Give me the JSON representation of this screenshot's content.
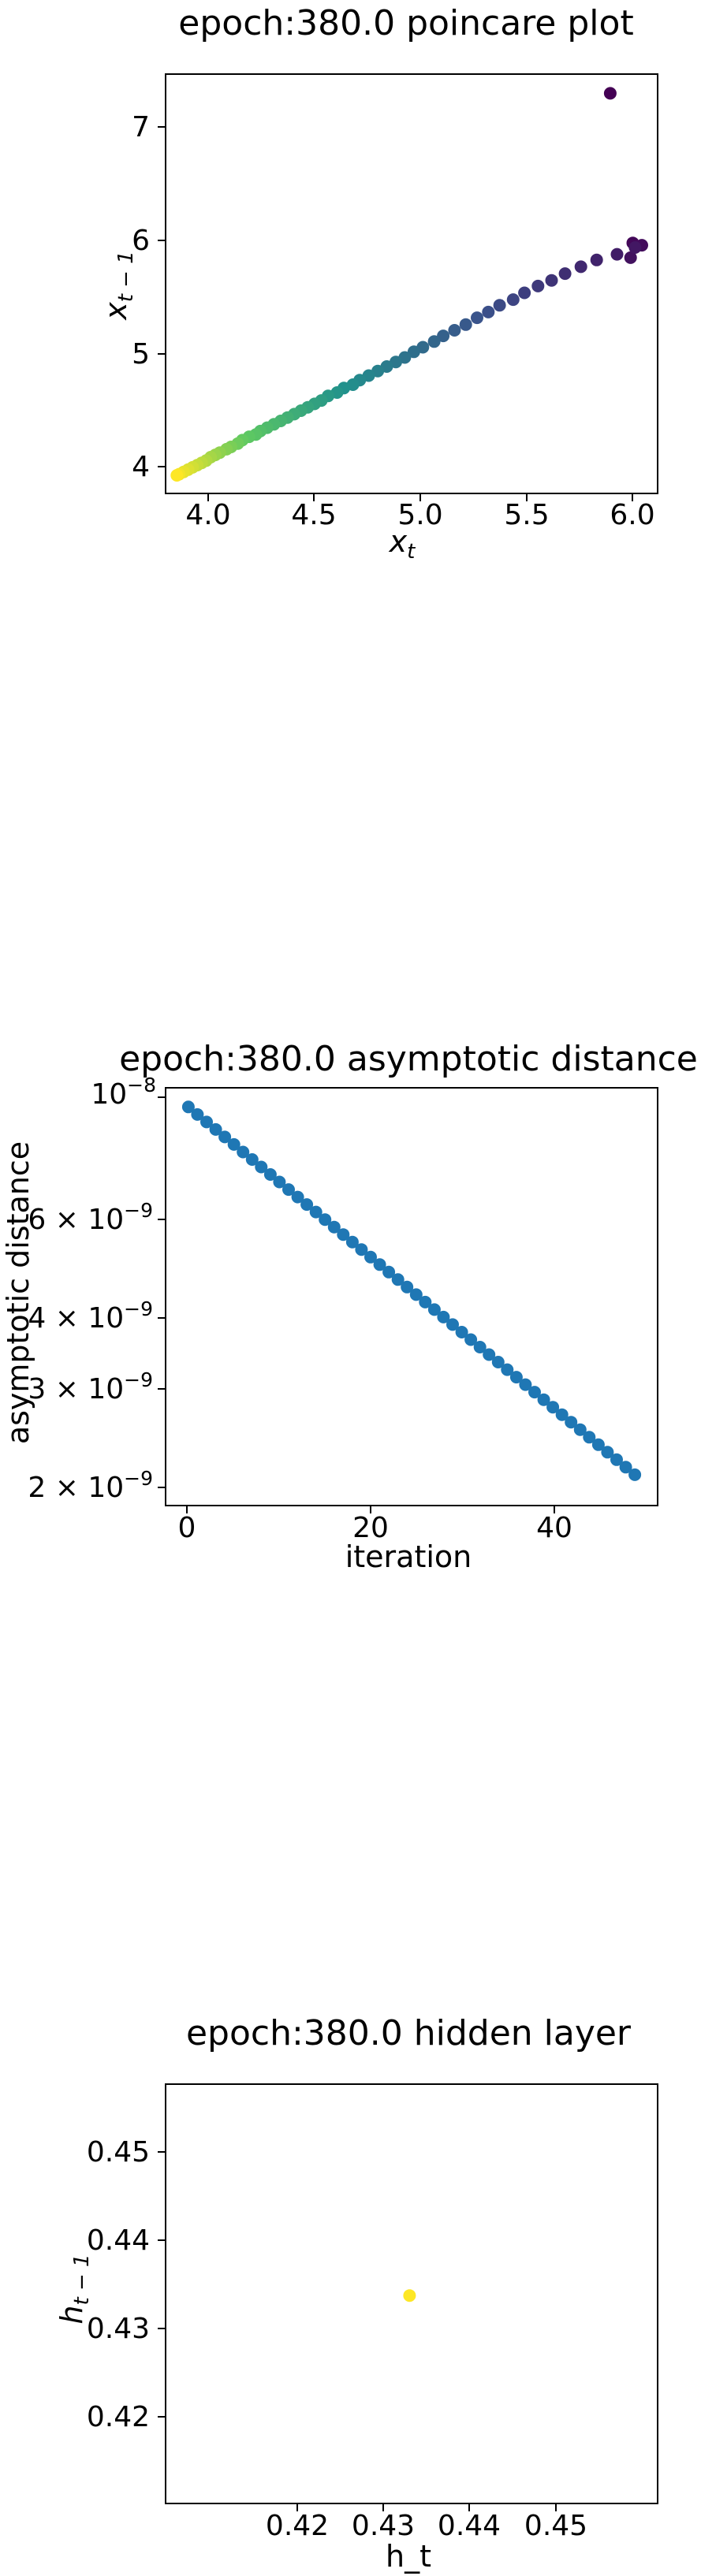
{
  "charts": [
    {
      "title": "epoch:380.0 poincare plot",
      "xlabel_base": "x",
      "xlabel_sub": "t",
      "ylabel_base": "x",
      "ylabel_sub": "t − 1",
      "xticks": [
        "4.0",
        "4.5",
        "5.0",
        "5.5",
        "6.0"
      ],
      "yticks": [
        "4",
        "5",
        "6",
        "7"
      ]
    },
    {
      "title": "epoch:380.0 asymptotic distance",
      "xlabel": "iteration",
      "ylabel": "asymptotic distance",
      "xticks": [
        "0",
        "20",
        "40"
      ],
      "ytick_top_base": "10",
      "ytick_top_exp": "−8",
      "ytick_rows": [
        {
          "mant": "6 × 10",
          "exp": "−9"
        },
        {
          "mant": "4 × 10",
          "exp": "−9"
        },
        {
          "mant": "3 × 10",
          "exp": "−9"
        },
        {
          "mant": "2 × 10",
          "exp": "−9"
        }
      ]
    },
    {
      "title": "epoch:380.0 hidden layer",
      "xlabel": "h_t",
      "ylabel_base": "h",
      "ylabel_sub": "t − 1",
      "xticks": [
        "0.42",
        "0.43",
        "0.44",
        "0.45"
      ],
      "yticks": [
        "0.45",
        "0.44",
        "0.43",
        "0.42"
      ]
    }
  ],
  "chart_data": [
    {
      "type": "scatter",
      "title": "epoch:380.0 poincare plot",
      "xlim": [
        3.88,
        6.06
      ],
      "ylim": [
        3.78,
        7.48
      ],
      "color_map": "viridis (dark purple for early points → yellow for later points)",
      "points": [
        [
          5.85,
          7.31
        ],
        [
          5.95,
          5.99
        ],
        [
          5.99,
          5.97
        ],
        [
          5.94,
          5.86
        ],
        [
          5.96,
          5.95
        ],
        [
          5.88,
          5.89
        ],
        [
          5.79,
          5.84
        ],
        [
          5.72,
          5.78
        ],
        [
          5.65,
          5.72
        ],
        [
          5.59,
          5.66
        ],
        [
          5.53,
          5.61
        ],
        [
          5.47,
          5.55
        ],
        [
          5.42,
          5.49
        ],
        [
          5.36,
          5.44
        ],
        [
          5.31,
          5.38
        ],
        [
          5.26,
          5.33
        ],
        [
          5.21,
          5.27
        ],
        [
          5.16,
          5.22
        ],
        [
          5.11,
          5.17
        ],
        [
          5.07,
          5.12
        ],
        [
          5.02,
          5.07
        ],
        [
          4.98,
          5.03
        ],
        [
          4.94,
          4.98
        ],
        [
          4.9,
          4.94
        ],
        [
          4.86,
          4.9
        ],
        [
          4.82,
          4.86
        ],
        [
          4.78,
          4.82
        ],
        [
          4.74,
          4.78
        ],
        [
          4.71,
          4.74
        ],
        [
          4.67,
          4.71
        ],
        [
          4.64,
          4.67
        ],
        [
          4.6,
          4.64
        ],
        [
          4.57,
          4.6
        ],
        [
          4.54,
          4.57
        ],
        [
          4.51,
          4.54
        ],
        [
          4.48,
          4.51
        ],
        [
          4.45,
          4.48
        ],
        [
          4.42,
          4.45
        ],
        [
          4.39,
          4.42
        ],
        [
          4.36,
          4.39
        ],
        [
          4.33,
          4.36
        ],
        [
          4.3,
          4.33
        ],
        [
          4.28,
          4.3
        ],
        [
          4.25,
          4.28
        ],
        [
          4.22,
          4.25
        ],
        [
          4.2,
          4.22
        ],
        [
          4.17,
          4.19
        ],
        [
          4.15,
          4.17
        ],
        [
          4.12,
          4.14
        ],
        [
          4.1,
          4.12
        ],
        [
          4.08,
          4.1
        ],
        [
          4.06,
          4.07
        ],
        [
          4.04,
          4.05
        ],
        [
          4.02,
          4.03
        ],
        [
          4.0,
          4.01
        ],
        [
          3.98,
          3.99
        ],
        [
          3.96,
          3.97
        ],
        [
          3.94,
          3.95
        ],
        [
          3.93,
          3.94
        ]
      ]
    },
    {
      "type": "scatter",
      "title": "epoch:380.0 asymptotic distance",
      "xlabel": "iteration",
      "ylabel": "asymptotic distance",
      "yscale": "log",
      "xlim": [
        -2.5,
        51.5
      ],
      "ylim": [
        1.82e-09,
        1.04e-08
      ],
      "color": "#1f77b4",
      "x": [
        0,
        1,
        2,
        3,
        4,
        5,
        6,
        7,
        8,
        9,
        10,
        11,
        12,
        13,
        14,
        15,
        16,
        17,
        18,
        19,
        20,
        21,
        22,
        23,
        24,
        25,
        26,
        27,
        28,
        29,
        30,
        31,
        32,
        33,
        34,
        35,
        36,
        37,
        38,
        39,
        40,
        41,
        42,
        43,
        44,
        45,
        46,
        47,
        48,
        49
      ],
      "y_first": 9.6e-09,
      "y_last": 2.07e-09
    },
    {
      "type": "scatter",
      "title": "epoch:380.0 hidden layer",
      "xlabel": "h_t",
      "xlim": [
        0.4105,
        0.4585
      ],
      "ylim": [
        0.4105,
        0.4585
      ],
      "color": "#fde725",
      "points": [
        [
          0.4343,
          0.4343
        ]
      ]
    }
  ]
}
